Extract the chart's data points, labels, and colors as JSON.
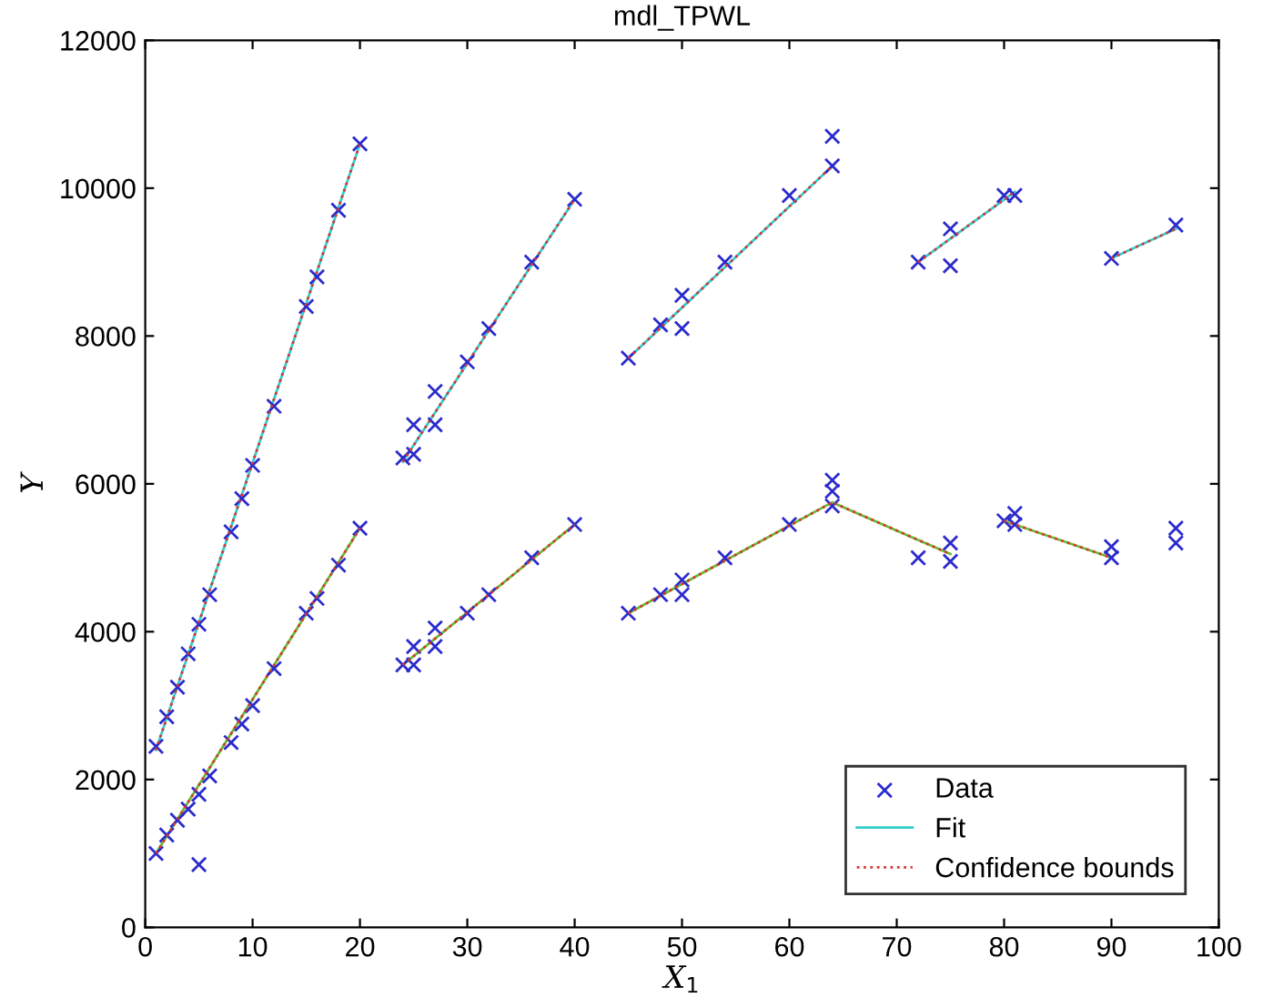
{
  "chart_data": {
    "type": "scatter",
    "title": "mdl_TPWL",
    "xlabel": "X$_{1}$",
    "ylabel": "Y",
    "xlim": [
      0,
      100
    ],
    "ylim": [
      0,
      12000
    ],
    "xticks": [
      0,
      10,
      20,
      30,
      40,
      50,
      60,
      70,
      80,
      90,
      100
    ],
    "yticks": [
      0,
      2000,
      4000,
      6000,
      8000,
      10000,
      12000
    ],
    "grid": false,
    "legend": "bottom right",
    "series": [
      {
        "name": "Data",
        "marker": "cross",
        "color": "#2b2bcc",
        "x": [
          1,
          2,
          3,
          4,
          5,
          6,
          8,
          9,
          10,
          12,
          15,
          16,
          18,
          20,
          24,
          25,
          25,
          27,
          27,
          30,
          32,
          36,
          40,
          45,
          48,
          50,
          50,
          54,
          60,
          64,
          64,
          72,
          75,
          75,
          80,
          81,
          90,
          96,
          1,
          2,
          3,
          4,
          5,
          5,
          6,
          8,
          9,
          10,
          12,
          15,
          16,
          18,
          20,
          24,
          25,
          25,
          27,
          27,
          30,
          32,
          36,
          40,
          45,
          48,
          50,
          50,
          54,
          60,
          64,
          64,
          64,
          72,
          75,
          75,
          80,
          81,
          81,
          90,
          90,
          96,
          96
        ],
        "values": [
          2450,
          2850,
          3250,
          3700,
          4100,
          4500,
          5350,
          5800,
          6250,
          7050,
          8400,
          8800,
          9700,
          10600,
          6350,
          6400,
          6800,
          7250,
          6800,
          7650,
          8100,
          9000,
          9850,
          7700,
          8150,
          8550,
          8100,
          9000,
          9900,
          10300,
          10700,
          9000,
          9450,
          8950,
          9900,
          9900,
          9050,
          9500,
          1000,
          1250,
          1450,
          1600,
          1800,
          850,
          2050,
          2500,
          2750,
          3000,
          3500,
          4250,
          4450,
          4900,
          5400,
          3550,
          3550,
          3800,
          4050,
          3800,
          4250,
          4500,
          5000,
          5450,
          4250,
          4500,
          4700,
          4500,
          5000,
          5450,
          5700,
          5900,
          6050,
          5000,
          5200,
          4950,
          5500,
          5600,
          5450,
          5000,
          5150,
          5400,
          5200
        ]
      },
      {
        "name": "Fit",
        "type": "line",
        "line_style": "solid",
        "color": "#33cccc",
        "x": [
          1,
          20,
          null,
          24,
          40,
          null,
          45,
          64,
          null,
          72,
          81,
          null,
          90,
          96
        ],
        "values": [
          2400,
          10600,
          null,
          6300,
          9850,
          null,
          7700,
          10300,
          null,
          9000,
          9950,
          null,
          9050,
          9450
        ]
      },
      {
        "type": "line",
        "line_style": "solid",
        "color": "#66bb33",
        "x": [
          1,
          20,
          null,
          24,
          40,
          null,
          45,
          64,
          75,
          null,
          80,
          90
        ],
        "values": [
          1000,
          5400,
          null,
          3550,
          5450,
          null,
          4250,
          5750,
          5050,
          null,
          5500,
          5000
        ]
      },
      {
        "name": "Confidence bounds",
        "type": "line",
        "line_style": "dotted",
        "color": "#dd3333",
        "x": [
          1,
          20,
          null,
          24,
          40,
          null,
          45,
          64,
          null,
          72,
          81,
          null,
          90,
          96
        ],
        "values": [
          2400,
          10600,
          null,
          6300,
          9850,
          null,
          7700,
          10300,
          null,
          9000,
          9950,
          null,
          9050,
          9450
        ]
      },
      {
        "type": "line",
        "line_style": "dotted",
        "color": "#dd3333",
        "x": [
          1,
          20,
          null,
          24,
          40,
          null,
          45,
          64,
          75,
          null,
          80,
          90
        ],
        "values": [
          1000,
          5400,
          null,
          3550,
          5450,
          null,
          4250,
          5750,
          5050,
          null,
          5500,
          5000
        ]
      }
    ]
  }
}
